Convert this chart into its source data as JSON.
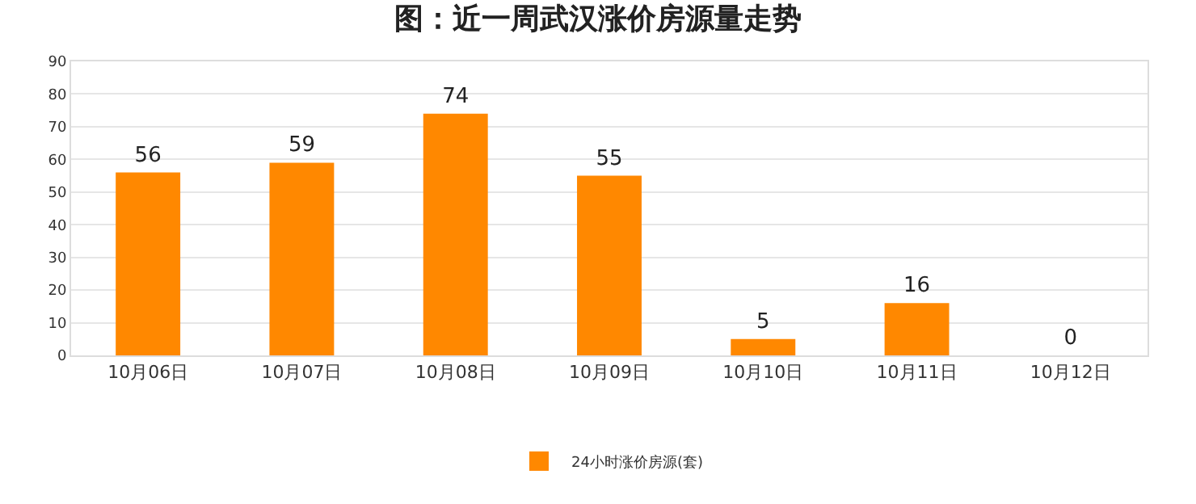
{
  "chart_data": {
    "type": "bar",
    "title": "图：近一周武汉涨价房源量走势",
    "categories": [
      "10月06日",
      "10月07日",
      "10月08日",
      "10月09日",
      "10月10日",
      "10月11日",
      "10月12日"
    ],
    "series": [
      {
        "name": "24小时涨价房源(套)",
        "color": "#ff8800",
        "values": [
          56,
          59,
          74,
          55,
          5,
          16,
          0
        ]
      }
    ],
    "ylim": [
      0,
      90
    ],
    "yticks": [
      0,
      10,
      20,
      30,
      40,
      50,
      60,
      70,
      80,
      90
    ],
    "grid": "y",
    "legend": "bottom",
    "data_labels": true
  }
}
